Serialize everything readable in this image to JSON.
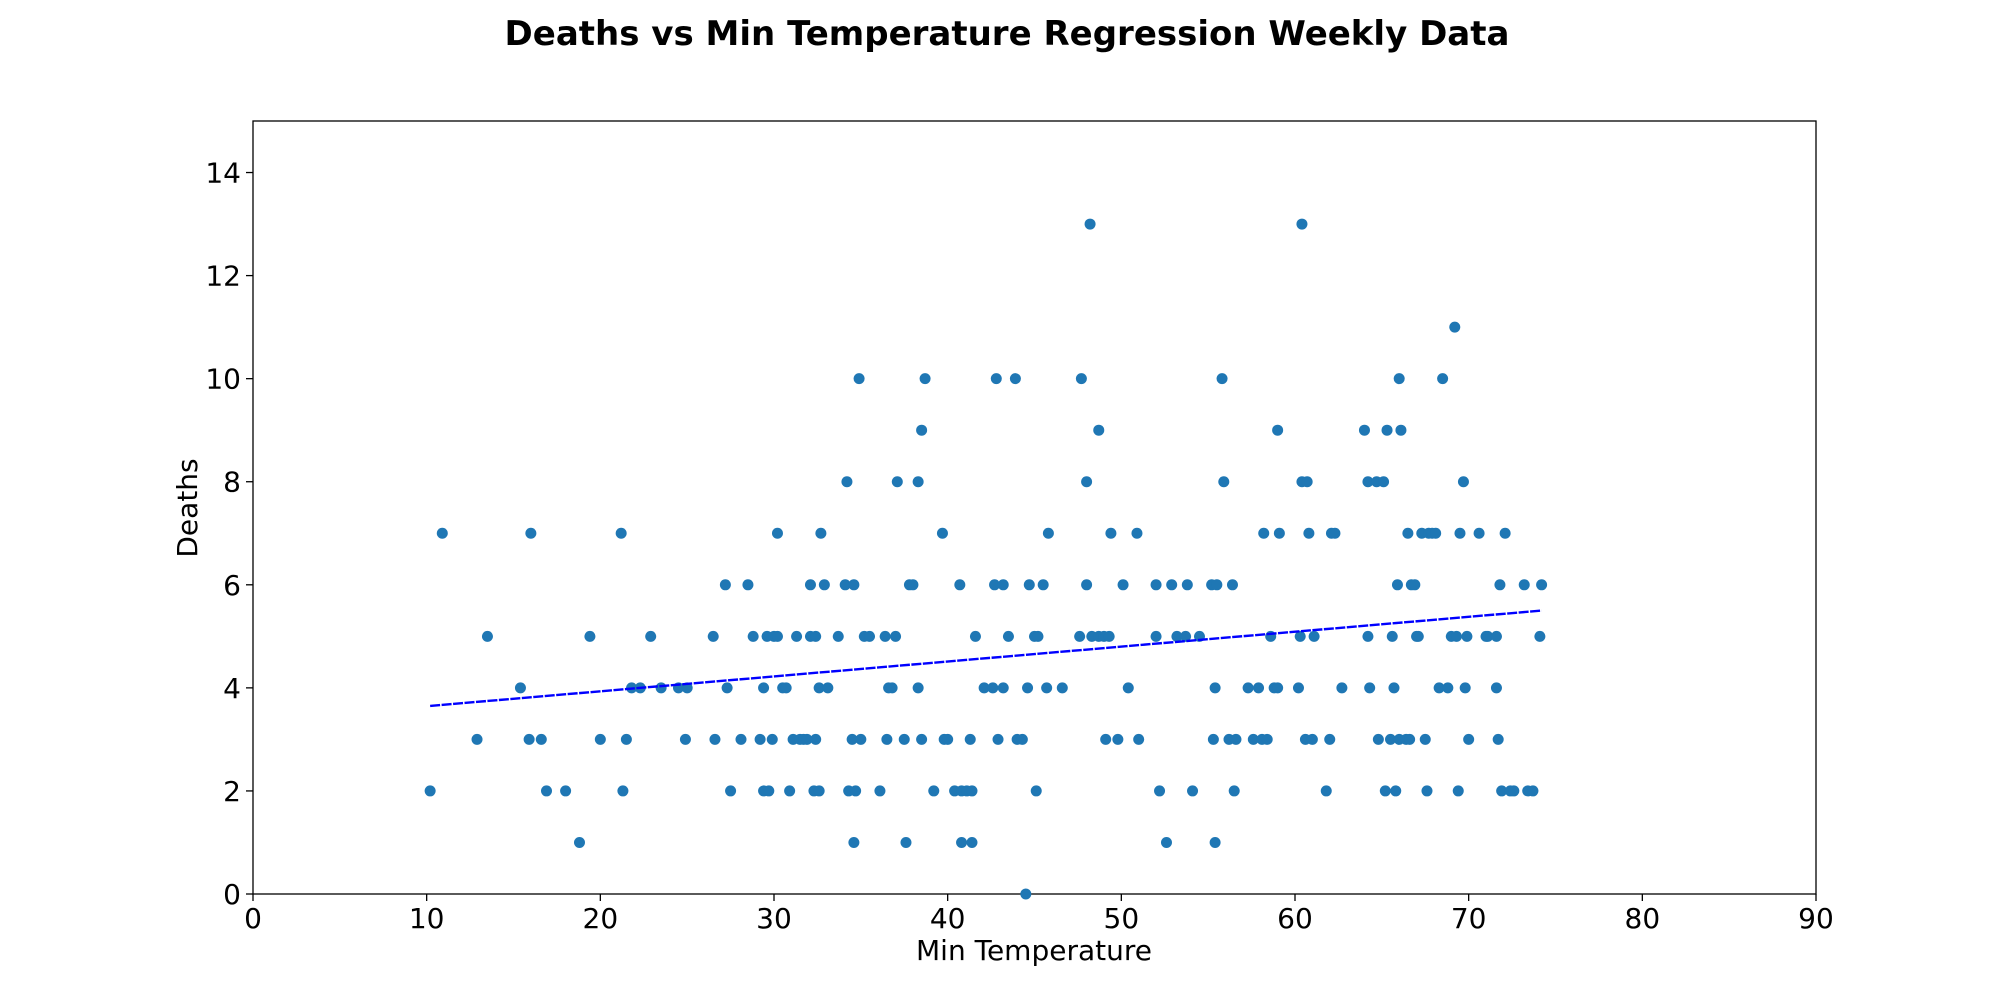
{
  "chart_data": {
    "type": "scatter",
    "title": "Deaths vs Min Temperature Regression Weekly Data",
    "xlabel": "Min Temperature",
    "ylabel": "Deaths",
    "xlim": [
      0,
      90
    ],
    "ylim": [
      0,
      15
    ],
    "xticks": [
      0,
      10,
      20,
      30,
      40,
      50,
      60,
      70,
      80,
      90
    ],
    "yticks": [
      0,
      2,
      4,
      6,
      8,
      10,
      12,
      14
    ],
    "grid": false,
    "legend": "none",
    "colors": {
      "points": "#1f77b4",
      "regression": "#0000ff"
    },
    "regression": {
      "x": [
        10.2,
        74.2
      ],
      "y": [
        3.65,
        5.5
      ]
    },
    "points": [
      [
        10.2,
        2
      ],
      [
        10.9,
        7
      ],
      [
        12.9,
        3
      ],
      [
        13.5,
        5
      ],
      [
        15.4,
        4
      ],
      [
        15.9,
        3
      ],
      [
        16.0,
        7
      ],
      [
        16.6,
        3
      ],
      [
        16.9,
        2
      ],
      [
        18.0,
        2
      ],
      [
        18.8,
        1
      ],
      [
        19.4,
        5
      ],
      [
        20.0,
        3
      ],
      [
        21.2,
        7
      ],
      [
        21.3,
        2
      ],
      [
        21.5,
        3
      ],
      [
        21.8,
        4
      ],
      [
        22.3,
        4
      ],
      [
        22.9,
        5
      ],
      [
        23.5,
        4
      ],
      [
        24.5,
        4
      ],
      [
        24.9,
        3
      ],
      [
        25.0,
        4
      ],
      [
        26.5,
        5
      ],
      [
        26.6,
        3
      ],
      [
        27.2,
        6
      ],
      [
        27.3,
        4
      ],
      [
        27.5,
        2
      ],
      [
        28.1,
        3
      ],
      [
        28.5,
        6
      ],
      [
        28.8,
        5
      ],
      [
        29.2,
        3
      ],
      [
        29.4,
        2
      ],
      [
        29.4,
        4
      ],
      [
        29.6,
        5
      ],
      [
        29.7,
        2
      ],
      [
        29.9,
        3
      ],
      [
        30.0,
        5
      ],
      [
        30.2,
        5
      ],
      [
        30.2,
        7
      ],
      [
        30.5,
        4
      ],
      [
        30.7,
        4
      ],
      [
        30.9,
        2
      ],
      [
        31.1,
        3
      ],
      [
        31.3,
        5
      ],
      [
        31.5,
        3
      ],
      [
        31.7,
        3
      ],
      [
        31.9,
        3
      ],
      [
        32.1,
        5
      ],
      [
        32.1,
        6
      ],
      [
        32.3,
        2
      ],
      [
        32.4,
        5
      ],
      [
        32.4,
        3
      ],
      [
        32.6,
        2
      ],
      [
        32.6,
        4
      ],
      [
        32.7,
        7
      ],
      [
        32.9,
        6
      ],
      [
        33.1,
        4
      ],
      [
        33.7,
        5
      ],
      [
        34.1,
        6
      ],
      [
        34.2,
        8
      ],
      [
        34.3,
        2
      ],
      [
        34.5,
        3
      ],
      [
        34.6,
        6
      ],
      [
        34.6,
        1
      ],
      [
        34.7,
        2
      ],
      [
        34.9,
        10
      ],
      [
        35.0,
        3
      ],
      [
        35.2,
        5
      ],
      [
        35.5,
        5
      ],
      [
        36.1,
        2
      ],
      [
        36.4,
        5
      ],
      [
        36.5,
        3
      ],
      [
        36.6,
        4
      ],
      [
        36.8,
        4
      ],
      [
        37.0,
        5
      ],
      [
        37.1,
        8
      ],
      [
        37.5,
        3
      ],
      [
        37.6,
        1
      ],
      [
        37.8,
        6
      ],
      [
        38.0,
        6
      ],
      [
        38.3,
        4
      ],
      [
        38.3,
        8
      ],
      [
        38.5,
        3
      ],
      [
        38.5,
        9
      ],
      [
        38.7,
        10
      ],
      [
        39.2,
        2
      ],
      [
        39.7,
        7
      ],
      [
        39.8,
        3
      ],
      [
        40.0,
        3
      ],
      [
        40.4,
        2
      ],
      [
        40.7,
        6
      ],
      [
        40.8,
        2
      ],
      [
        40.8,
        1
      ],
      [
        41.1,
        2
      ],
      [
        41.3,
        3
      ],
      [
        41.4,
        2
      ],
      [
        41.4,
        1
      ],
      [
        41.6,
        5
      ],
      [
        42.1,
        4
      ],
      [
        42.6,
        4
      ],
      [
        42.7,
        6
      ],
      [
        42.8,
        10
      ],
      [
        42.9,
        3
      ],
      [
        43.2,
        6
      ],
      [
        43.2,
        4
      ],
      [
        43.5,
        5
      ],
      [
        43.9,
        10
      ],
      [
        44.0,
        3
      ],
      [
        44.3,
        3
      ],
      [
        44.5,
        0
      ],
      [
        44.6,
        4
      ],
      [
        44.7,
        6
      ],
      [
        45.0,
        5
      ],
      [
        45.1,
        2
      ],
      [
        45.2,
        5
      ],
      [
        45.5,
        6
      ],
      [
        45.7,
        4
      ],
      [
        45.8,
        7
      ],
      [
        46.6,
        4
      ],
      [
        47.6,
        5
      ],
      [
        47.7,
        10
      ],
      [
        48.0,
        6
      ],
      [
        48.0,
        8
      ],
      [
        48.2,
        13
      ],
      [
        48.3,
        5
      ],
      [
        48.7,
        5
      ],
      [
        48.7,
        9
      ],
      [
        49.0,
        5
      ],
      [
        49.1,
        3
      ],
      [
        49.3,
        5
      ],
      [
        49.4,
        7
      ],
      [
        49.8,
        3
      ],
      [
        50.1,
        6
      ],
      [
        50.4,
        4
      ],
      [
        50.9,
        7
      ],
      [
        51.0,
        3
      ],
      [
        52.0,
        6
      ],
      [
        52.0,
        5
      ],
      [
        52.2,
        2
      ],
      [
        52.6,
        1
      ],
      [
        52.9,
        6
      ],
      [
        53.2,
        5
      ],
      [
        53.7,
        5
      ],
      [
        53.8,
        6
      ],
      [
        54.1,
        2
      ],
      [
        54.5,
        5
      ],
      [
        55.2,
        6
      ],
      [
        55.3,
        3
      ],
      [
        55.4,
        4
      ],
      [
        55.4,
        1
      ],
      [
        55.5,
        6
      ],
      [
        55.8,
        10
      ],
      [
        55.9,
        8
      ],
      [
        56.2,
        3
      ],
      [
        56.4,
        6
      ],
      [
        56.5,
        2
      ],
      [
        56.6,
        3
      ],
      [
        57.3,
        4
      ],
      [
        57.6,
        3
      ],
      [
        57.9,
        4
      ],
      [
        58.1,
        3
      ],
      [
        58.2,
        7
      ],
      [
        58.4,
        3
      ],
      [
        58.6,
        5
      ],
      [
        58.8,
        4
      ],
      [
        59.0,
        4
      ],
      [
        59.0,
        9
      ],
      [
        59.1,
        7
      ],
      [
        60.2,
        4
      ],
      [
        60.3,
        5
      ],
      [
        60.4,
        8
      ],
      [
        60.4,
        13
      ],
      [
        60.6,
        3
      ],
      [
        60.7,
        8
      ],
      [
        60.8,
        7
      ],
      [
        61.0,
        3
      ],
      [
        61.1,
        5
      ],
      [
        61.8,
        2
      ],
      [
        62.0,
        3
      ],
      [
        62.1,
        7
      ],
      [
        62.3,
        7
      ],
      [
        62.7,
        4
      ],
      [
        64.0,
        9
      ],
      [
        64.2,
        5
      ],
      [
        64.2,
        8
      ],
      [
        64.3,
        4
      ],
      [
        64.7,
        8
      ],
      [
        64.8,
        3
      ],
      [
        65.1,
        8
      ],
      [
        65.2,
        2
      ],
      [
        65.3,
        9
      ],
      [
        65.5,
        3
      ],
      [
        65.6,
        5
      ],
      [
        65.7,
        4
      ],
      [
        65.8,
        2
      ],
      [
        65.9,
        6
      ],
      [
        66.0,
        3
      ],
      [
        66.0,
        10
      ],
      [
        66.1,
        9
      ],
      [
        66.4,
        3
      ],
      [
        66.5,
        7
      ],
      [
        66.6,
        3
      ],
      [
        66.7,
        6
      ],
      [
        66.9,
        6
      ],
      [
        67.0,
        5
      ],
      [
        67.1,
        5
      ],
      [
        67.3,
        7
      ],
      [
        67.5,
        3
      ],
      [
        67.6,
        2
      ],
      [
        67.7,
        7
      ],
      [
        67.9,
        7
      ],
      [
        68.1,
        7
      ],
      [
        68.3,
        4
      ],
      [
        68.5,
        10
      ],
      [
        68.8,
        4
      ],
      [
        69.0,
        5
      ],
      [
        69.2,
        11
      ],
      [
        69.3,
        5
      ],
      [
        69.4,
        2
      ],
      [
        69.5,
        7
      ],
      [
        69.7,
        8
      ],
      [
        69.8,
        4
      ],
      [
        69.9,
        5
      ],
      [
        70.0,
        3
      ],
      [
        70.6,
        7
      ],
      [
        71.0,
        5
      ],
      [
        71.1,
        5
      ],
      [
        71.6,
        5
      ],
      [
        71.6,
        4
      ],
      [
        71.7,
        3
      ],
      [
        71.8,
        6
      ],
      [
        71.9,
        2
      ],
      [
        72.1,
        7
      ],
      [
        72.4,
        2
      ],
      [
        72.6,
        2
      ],
      [
        73.2,
        6
      ],
      [
        73.4,
        2
      ],
      [
        73.7,
        2
      ],
      [
        74.1,
        5
      ],
      [
        74.2,
        6
      ]
    ]
  }
}
